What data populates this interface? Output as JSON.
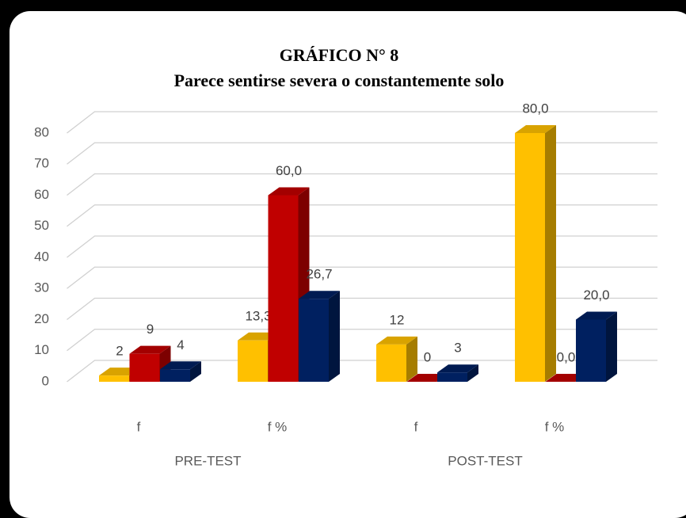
{
  "chart_data": {
    "type": "bar3d",
    "title": "GRÁFICO N° 8",
    "subtitle": "Parece sentirse severa o constantemente solo",
    "categories": [
      "f",
      "f %",
      "f",
      "f %"
    ],
    "groups": [
      "PRE-TEST",
      "POST-TEST"
    ],
    "series": [
      {
        "color": "#FFC000",
        "values": [
          2,
          13.3,
          12,
          80.0
        ],
        "value_labels": [
          "2",
          "13,3",
          "12",
          "80,0"
        ]
      },
      {
        "color": "#C00000",
        "values": [
          9,
          60.0,
          0,
          0.0
        ],
        "value_labels": [
          "9",
          "60,0",
          "0",
          "0,0"
        ]
      },
      {
        "color": "#002060",
        "values": [
          4,
          26.7,
          3,
          20.0
        ],
        "value_labels": [
          "4",
          "26,7",
          "3",
          "20,0"
        ]
      }
    ],
    "ylim": [
      0,
      80
    ],
    "yticks": [
      0,
      10,
      20,
      30,
      40,
      50,
      60,
      70,
      80
    ],
    "grid": true
  }
}
